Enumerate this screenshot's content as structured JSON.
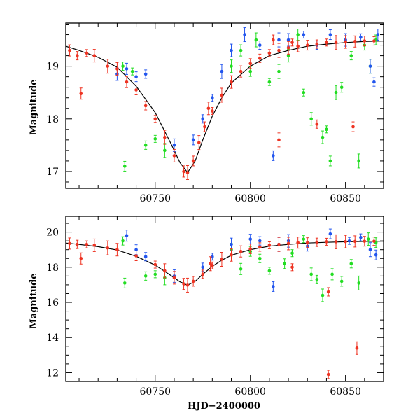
{
  "chart_data": [
    {
      "type": "scatter",
      "title": "",
      "xlabel": "",
      "ylabel": "Magnitude",
      "xlim": [
        60703,
        60870
      ],
      "ylim": [
        19.82,
        16.68
      ],
      "y_inverted": true,
      "grid": false,
      "x_ticks": [
        60750,
        60800,
        60850
      ],
      "y_ticks": [
        17,
        18,
        19
      ],
      "series": [
        {
          "color": "#22dd22",
          "points": [
            [
              60734,
              17.1
            ],
            [
              60745,
              17.5
            ],
            [
              60750,
              17.62
            ],
            [
              60755,
              17.4
            ],
            [
              60733,
              19.0
            ],
            [
              60738,
              18.9
            ],
            [
              60790,
              19.0
            ],
            [
              60795,
              19.3
            ],
            [
              60800,
              18.9
            ],
            [
              60803,
              19.5
            ],
            [
              60810,
              18.7
            ],
            [
              60815,
              18.9
            ],
            [
              60820,
              19.2
            ],
            [
              60825,
              19.6
            ],
            [
              60828,
              18.5
            ],
            [
              60832,
              18.0
            ],
            [
              60838,
              17.65
            ],
            [
              60840,
              17.8
            ],
            [
              60842,
              17.2
            ],
            [
              60845,
              18.5
            ],
            [
              60848,
              18.6
            ],
            [
              60853,
              19.2
            ],
            [
              60857,
              17.2
            ],
            [
              60860,
              19.4
            ],
            [
              60863,
              19.0
            ],
            [
              60866,
              19.5
            ]
          ]
        },
        {
          "color": "#2255ee",
          "points": [
            [
              60730,
              18.85
            ],
            [
              60735,
              18.95
            ],
            [
              60740,
              18.8
            ],
            [
              60745,
              18.85
            ],
            [
              60760,
              17.5
            ],
            [
              60770,
              17.6
            ],
            [
              60775,
              18.0
            ],
            [
              60780,
              18.4
            ],
            [
              60785,
              18.9
            ],
            [
              60790,
              19.3
            ],
            [
              60797,
              19.6
            ],
            [
              60805,
              19.4
            ],
            [
              60812,
              17.3
            ],
            [
              60815,
              19.5
            ],
            [
              60820,
              19.5
            ],
            [
              60828,
              19.6
            ],
            [
              60835,
              19.4
            ],
            [
              60842,
              19.6
            ],
            [
              60850,
              19.5
            ],
            [
              60858,
              19.55
            ],
            [
              60863,
              19.0
            ],
            [
              60865,
              18.7
            ],
            [
              60867,
              19.6
            ]
          ]
        },
        {
          "color": "#ee3322",
          "points": [
            [
              60705,
              19.3
            ],
            [
              60709,
              19.2
            ],
            [
              60711,
              18.48
            ],
            [
              60714,
              19.25
            ],
            [
              60718,
              19.2
            ],
            [
              60725,
              19.0
            ],
            [
              60730,
              18.95
            ],
            [
              60735,
              18.7
            ],
            [
              60740,
              18.55
            ],
            [
              60745,
              18.25
            ],
            [
              60750,
              18.0
            ],
            [
              60755,
              17.65
            ],
            [
              60760,
              17.3
            ],
            [
              60765,
              17.0
            ],
            [
              60767,
              16.98
            ],
            [
              60770,
              17.2
            ],
            [
              60773,
              17.55
            ],
            [
              60776,
              17.85
            ],
            [
              60780,
              18.15
            ],
            [
              60785,
              18.45
            ],
            [
              60790,
              18.7
            ],
            [
              60795,
              18.9
            ],
            [
              60800,
              19.05
            ],
            [
              60805,
              19.15
            ],
            [
              60810,
              19.25
            ],
            [
              60815,
              19.3
            ],
            [
              60820,
              19.35
            ],
            [
              60825,
              19.38
            ],
            [
              60830,
              19.4
            ],
            [
              60835,
              19.42
            ],
            [
              60840,
              19.45
            ],
            [
              60845,
              19.45
            ],
            [
              60850,
              19.46
            ],
            [
              60855,
              19.47
            ],
            [
              60860,
              19.48
            ],
            [
              60865,
              19.48
            ],
            [
              60778,
              18.2
            ],
            [
              60815,
              17.6
            ],
            [
              60835,
              17.9
            ],
            [
              60854,
              17.85
            ],
            [
              60812,
              19.5
            ],
            [
              60822,
              19.45
            ]
          ]
        }
      ],
      "model_curve": {
        "color": "#000000",
        "points": [
          [
            60703,
            19.38
          ],
          [
            60710,
            19.3
          ],
          [
            60720,
            19.17
          ],
          [
            60730,
            18.98
          ],
          [
            60740,
            18.62
          ],
          [
            60750,
            18.12
          ],
          [
            60758,
            17.55
          ],
          [
            60763,
            17.17
          ],
          [
            60767,
            16.98
          ],
          [
            60771,
            17.2
          ],
          [
            60775,
            17.6
          ],
          [
            60780,
            18.05
          ],
          [
            60785,
            18.4
          ],
          [
            60790,
            18.68
          ],
          [
            60800,
            19.0
          ],
          [
            60810,
            19.2
          ],
          [
            60820,
            19.3
          ],
          [
            60830,
            19.38
          ],
          [
            60840,
            19.42
          ],
          [
            60850,
            19.45
          ],
          [
            60860,
            19.47
          ],
          [
            60870,
            19.48
          ]
        ]
      }
    },
    {
      "type": "scatter",
      "title": "",
      "xlabel": "HJD−2400000",
      "ylabel": "Magnitude",
      "xlim": [
        60703,
        60870
      ],
      "ylim": [
        20.9,
        11.5
      ],
      "y_inverted": true,
      "grid": false,
      "x_ticks": [
        60750,
        60800,
        60850
      ],
      "y_ticks": [
        12,
        14,
        16,
        18,
        20
      ],
      "series": [
        {
          "color": "#22dd22",
          "points": [
            [
              60734,
              17.1
            ],
            [
              60745,
              17.5
            ],
            [
              60750,
              17.6
            ],
            [
              60755,
              17.4
            ],
            [
              60733,
              19.5
            ],
            [
              60790,
              19.0
            ],
            [
              60795,
              17.9
            ],
            [
              60800,
              18.9
            ],
            [
              60805,
              18.5
            ],
            [
              60810,
              17.8
            ],
            [
              60818,
              18.2
            ],
            [
              60822,
              18.8
            ],
            [
              60828,
              19.6
            ],
            [
              60832,
              17.6
            ],
            [
              60835,
              17.3
            ],
            [
              60838,
              16.4
            ],
            [
              60843,
              17.6
            ],
            [
              60848,
              17.2
            ],
            [
              60853,
              18.2
            ],
            [
              60857,
              17.1
            ],
            [
              60862,
              19.6
            ],
            [
              60866,
              19.4
            ]
          ]
        },
        {
          "color": "#2255ee",
          "points": [
            [
              60735,
              19.8
            ],
            [
              60740,
              19.0
            ],
            [
              60745,
              18.6
            ],
            [
              60760,
              17.5
            ],
            [
              60775,
              18.0
            ],
            [
              60780,
              18.6
            ],
            [
              60790,
              19.3
            ],
            [
              60800,
              19.6
            ],
            [
              60805,
              19.5
            ],
            [
              60812,
              16.9
            ],
            [
              60815,
              19.3
            ],
            [
              60820,
              19.5
            ],
            [
              60830,
              19.2
            ],
            [
              60842,
              19.9
            ],
            [
              60852,
              19.5
            ],
            [
              60858,
              19.7
            ],
            [
              60863,
              19.0
            ],
            [
              60866,
              18.7
            ]
          ]
        },
        {
          "color": "#ee3322",
          "points": [
            [
              60705,
              19.35
            ],
            [
              60709,
              19.3
            ],
            [
              60711,
              18.5
            ],
            [
              60714,
              19.3
            ],
            [
              60718,
              19.25
            ],
            [
              60725,
              19.1
            ],
            [
              60730,
              19.0
            ],
            [
              60740,
              18.65
            ],
            [
              60750,
              18.15
            ],
            [
              60755,
              17.8
            ],
            [
              60760,
              17.4
            ],
            [
              60765,
              17.05
            ],
            [
              60767,
              16.98
            ],
            [
              60770,
              17.2
            ],
            [
              60775,
              17.6
            ],
            [
              60780,
              18.1
            ],
            [
              60785,
              18.45
            ],
            [
              60790,
              18.7
            ],
            [
              60795,
              18.9
            ],
            [
              60800,
              19.05
            ],
            [
              60805,
              19.15
            ],
            [
              60810,
              19.25
            ],
            [
              60815,
              19.3
            ],
            [
              60820,
              19.35
            ],
            [
              60825,
              19.4
            ],
            [
              60830,
              19.4
            ],
            [
              60835,
              19.42
            ],
            [
              60840,
              19.45
            ],
            [
              60845,
              19.45
            ],
            [
              60850,
              19.46
            ],
            [
              60855,
              19.47
            ],
            [
              60860,
              19.48
            ],
            [
              60865,
              19.48
            ],
            [
              60841,
              11.9
            ],
            [
              60856,
              13.4
            ],
            [
              60841,
              16.6
            ],
            [
              60779,
              18.2
            ],
            [
              60822,
              18.0
            ]
          ]
        }
      ],
      "model_curve": {
        "color": "#000000",
        "points": [
          [
            60703,
            19.38
          ],
          [
            60710,
            19.3
          ],
          [
            60720,
            19.17
          ],
          [
            60730,
            18.98
          ],
          [
            60740,
            18.62
          ],
          [
            60750,
            18.12
          ],
          [
            60758,
            17.55
          ],
          [
            60763,
            17.17
          ],
          [
            60767,
            16.98
          ],
          [
            60771,
            17.2
          ],
          [
            60775,
            17.6
          ],
          [
            60780,
            18.05
          ],
          [
            60785,
            18.4
          ],
          [
            60790,
            18.68
          ],
          [
            60800,
            19.0
          ],
          [
            60810,
            19.2
          ],
          [
            60820,
            19.3
          ],
          [
            60830,
            19.38
          ],
          [
            60840,
            19.42
          ],
          [
            60850,
            19.45
          ],
          [
            60860,
            19.47
          ],
          [
            60870,
            19.48
          ]
        ]
      }
    }
  ]
}
